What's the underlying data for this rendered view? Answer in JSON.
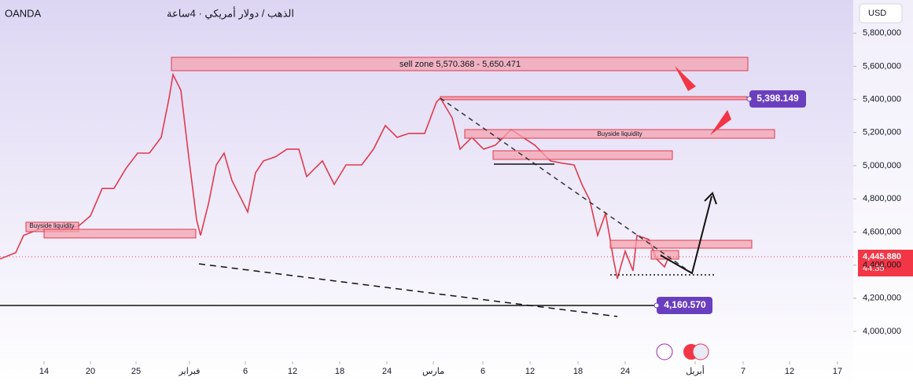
{
  "chart_data": {
    "type": "line",
    "title": "OANDA",
    "subtitle": "الذهب / دولار أمريكي · 4ساعة",
    "currency": "USD",
    "x": [
      0,
      2,
      3,
      5,
      8,
      10,
      11.5,
      13,
      14.5,
      16,
      17.5,
      19,
      20.5,
      21.5,
      22,
      23,
      24,
      25,
      25.5,
      26.5,
      27.5,
      28.5,
      29.5,
      30.5,
      31.5,
      32.5,
      33.5,
      35,
      36.5,
      38,
      39,
      40,
      41,
      42.5,
      44,
      46,
      47.5,
      49,
      50.5,
      52,
      54,
      55.5,
      56,
      57.5,
      58.5,
      60,
      61.5,
      63,
      65,
      66.5,
      68,
      70,
      71.5,
      73,
      74,
      75,
      76,
      77,
      77.5,
      78,
      78.5,
      79.5,
      80.5,
      81,
      82.5,
      83.5,
      84.5,
      85
    ],
    "series": [
      {
        "name": "XAUUSD",
        "color": "#e03a4e",
        "values": [
          4437000,
          4475000,
          4579000,
          4617000,
          4617000,
          4636000,
          4697000,
          4863000,
          4863000,
          4982000,
          5076000,
          5076000,
          5171000,
          5408000,
          5550000,
          5455000,
          5053000,
          4674000,
          4579000,
          4768000,
          5005000,
          5076000,
          4910000,
          4816000,
          4721000,
          4958000,
          5029000,
          5053000,
          5100000,
          5100000,
          4934000,
          4982000,
          5029000,
          4887000,
          5005000,
          5005000,
          5100000,
          5242000,
          5171000,
          5195000,
          5195000,
          5384000,
          5408000,
          5289000,
          5100000,
          5171000,
          5100000,
          5124000,
          5218000,
          5171000,
          5124000,
          5029000,
          5015000,
          5005000,
          4887000,
          4792000,
          4579000,
          4712000,
          4579000,
          4437000,
          4318000,
          4484000,
          4366000,
          4579000,
          4555000,
          4437000,
          4389000,
          4446000
        ]
      }
    ],
    "xlim": [
      0,
      108.5
    ],
    "ylim": [
      3820000,
      6000000
    ],
    "xticks": [
      {
        "value": 5.6,
        "label": "14"
      },
      {
        "value": 11.5,
        "label": "20"
      },
      {
        "value": 17.3,
        "label": "25"
      },
      {
        "value": 24.1,
        "label": "فبراير"
      },
      {
        "value": 31.2,
        "label": "6"
      },
      {
        "value": 37.2,
        "label": "12"
      },
      {
        "value": 43.2,
        "label": "18"
      },
      {
        "value": 49.2,
        "label": "24"
      },
      {
        "value": 55.1,
        "label": "مارس"
      },
      {
        "value": 61.4,
        "label": "6"
      },
      {
        "value": 67.4,
        "label": "12"
      },
      {
        "value": 73.5,
        "label": "18"
      },
      {
        "value": 79.5,
        "label": "24"
      },
      {
        "value": 88.4,
        "label": "أبريل"
      },
      {
        "value": 94.5,
        "label": "7"
      },
      {
        "value": 100.4,
        "label": "12"
      },
      {
        "value": 106.5,
        "label": "17"
      }
    ],
    "yticks": [
      {
        "value": 4000000,
        "label": "4,000,000"
      },
      {
        "value": 4200000,
        "label": "4,200,000"
      },
      {
        "value": 4400000,
        "label": "4,400,000"
      },
      {
        "value": 4600000,
        "label": "4,600,000"
      },
      {
        "value": 4800000,
        "label": "4,800,000"
      },
      {
        "value": 5000000,
        "label": "5,000,000"
      },
      {
        "value": 5200000,
        "label": "5,200,000"
      },
      {
        "value": 5400000,
        "label": "5,400,000"
      },
      {
        "value": 5600000,
        "label": "5,600,000"
      },
      {
        "value": 5800000,
        "label": "5,800,000"
      }
    ],
    "grid": false,
    "annotations": {
      "sell_zone": "sell zone  5,570.368 - 5,650.471",
      "buyside_1": "Buyside liquidity",
      "buyside_2": "Buyside liquidity",
      "target": "5,398.149",
      "support": "4,160.570",
      "last_price": "4,445.880",
      "countdown": "44:35"
    }
  }
}
